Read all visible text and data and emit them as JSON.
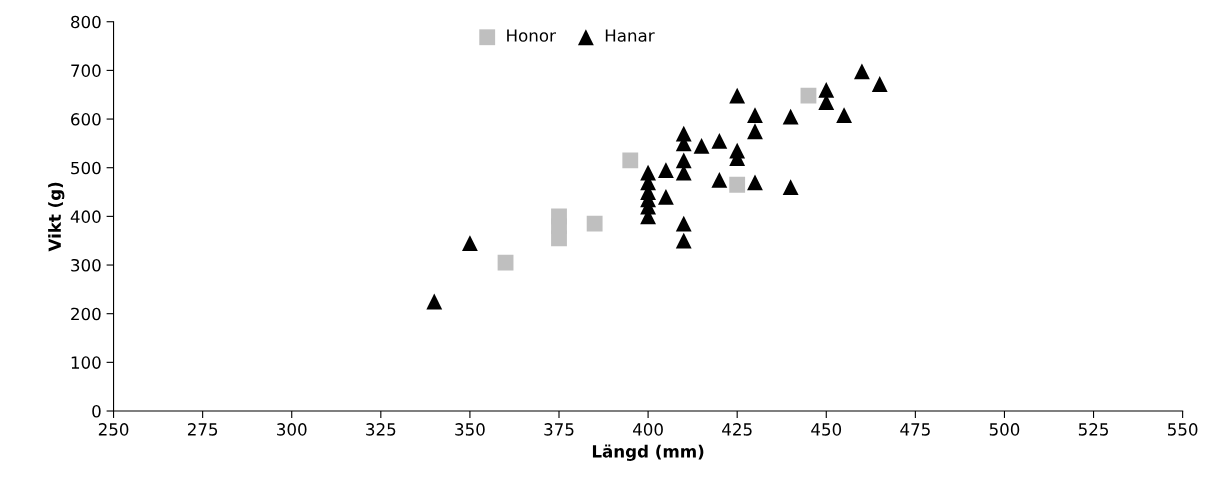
{
  "chart_data": {
    "type": "scatter",
    "xlabel": "Längd (mm)",
    "ylabel": "Vikt (g)",
    "xlim": [
      250,
      550
    ],
    "xticks": [
      250,
      275,
      300,
      325,
      350,
      375,
      400,
      425,
      450,
      475,
      500,
      525,
      550
    ],
    "ylim": [
      0,
      800
    ],
    "yticks": [
      0,
      100,
      200,
      300,
      400,
      500,
      600,
      700,
      800
    ],
    "grid": false,
    "legend": "top",
    "series": [
      {
        "name": "Honor",
        "color": "#bfbfbf",
        "marker": "square",
        "x": [
          360,
          375,
          375,
          375,
          385,
          395,
          425,
          445
        ],
        "values": [
          305,
          355,
          380,
          400,
          385,
          515,
          465,
          648
        ]
      },
      {
        "name": "Hanar",
        "color": "#000000",
        "marker": "triangle",
        "x": [
          340,
          350,
          400,
          400,
          400,
          400,
          400,
          400,
          405,
          405,
          410,
          410,
          410,
          410,
          410,
          410,
          415,
          420,
          420,
          425,
          425,
          425,
          430,
          430,
          430,
          440,
          440,
          450,
          450,
          455,
          460,
          465
        ],
        "values": [
          225,
          345,
          400,
          420,
          435,
          450,
          470,
          490,
          440,
          495,
          350,
          385,
          490,
          515,
          550,
          570,
          545,
          475,
          555,
          520,
          535,
          648,
          470,
          575,
          608,
          460,
          605,
          635,
          660,
          608,
          698,
          672
        ]
      }
    ]
  }
}
